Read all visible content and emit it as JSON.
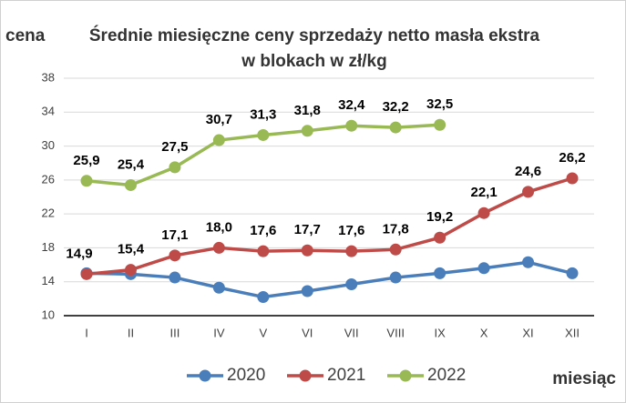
{
  "chart_data": {
    "type": "line",
    "title": [
      "Średnie miesięczne ceny sprzedaży netto masła ekstra",
      "w blokach  w zł/kg"
    ],
    "y_label": "cena",
    "x_label": "miesiąc",
    "categories": [
      "I",
      "II",
      "III",
      "IV",
      "V",
      "VI",
      "VII",
      "VIII",
      "IX",
      "X",
      "XI",
      "XII"
    ],
    "series": [
      {
        "name": "2020",
        "color": "#4a7ebb",
        "values": [
          15.0,
          14.9,
          14.5,
          13.3,
          12.2,
          12.9,
          13.7,
          14.5,
          15.0,
          15.6,
          16.3,
          15.0
        ]
      },
      {
        "name": "2021",
        "color": "#be4b48",
        "values": [
          14.9,
          15.4,
          17.1,
          18.0,
          17.6,
          17.7,
          17.6,
          17.8,
          19.2,
          22.1,
          24.6,
          26.2
        ],
        "value_labels": [
          "14,9",
          "15,4",
          "17,1",
          "18,0",
          "17,6",
          "17,7",
          "17,6",
          "17,8",
          "19,2",
          "22,1",
          "24,6",
          "26,2"
        ]
      },
      {
        "name": "2022",
        "color": "#98b954",
        "values": [
          25.9,
          25.4,
          27.5,
          30.7,
          31.3,
          31.8,
          32.4,
          32.2,
          32.5,
          null,
          null,
          null
        ],
        "value_labels": [
          "25,9",
          "25,4",
          "27,5",
          "30,7",
          "31,3",
          "31,8",
          "32,4",
          "32,2",
          "32,5",
          null,
          null,
          null
        ]
      }
    ],
    "ylim": [
      10,
      38
    ],
    "yticks": [
      10,
      14,
      18,
      22,
      26,
      30,
      34,
      38
    ],
    "grid": true,
    "legend": "bottom"
  }
}
